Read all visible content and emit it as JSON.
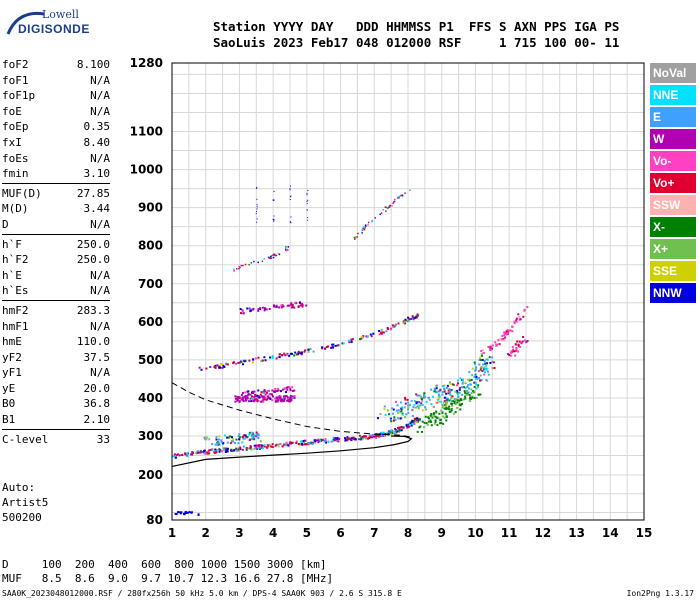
{
  "logo": {
    "line1": "Lowell",
    "line2": "DIGISONDE"
  },
  "header": {
    "line1": "Station YYYY DAY   DDD HHMMSS P1  FFS S AXN PPS IGA PS",
    "line2": "SaoLuis 2023 Feb17 048 012000 RSF     1 715 100 00- 11"
  },
  "params_group1": [
    {
      "key": "foF2",
      "value": "8.100"
    },
    {
      "key": "foF1",
      "value": "N/A"
    },
    {
      "key": "foF1p",
      "value": "N/A"
    },
    {
      "key": "foE",
      "value": "N/A"
    },
    {
      "key": "foEp",
      "value": "0.35"
    },
    {
      "key": "fxI",
      "value": "8.40"
    },
    {
      "key": "foEs",
      "value": "N/A"
    },
    {
      "key": "fmin",
      "value": "3.10"
    }
  ],
  "params_group2": [
    {
      "key": "MUF(D)",
      "value": "27.85"
    },
    {
      "key": "M(D)",
      "value": "3.44"
    },
    {
      "key": "D",
      "value": "N/A"
    }
  ],
  "params_group3": [
    {
      "key": "h`F",
      "value": "250.0"
    },
    {
      "key": "h`F2",
      "value": "250.0"
    },
    {
      "key": "h`E",
      "value": "N/A"
    },
    {
      "key": "h`Es",
      "value": "N/A"
    }
  ],
  "params_group4": [
    {
      "key": "hmF2",
      "value": "283.3"
    },
    {
      "key": "hmF1",
      "value": "N/A"
    },
    {
      "key": "hmE",
      "value": "110.0"
    },
    {
      "key": "yF2",
      "value": "37.5"
    },
    {
      "key": "yF1",
      "value": "N/A"
    },
    {
      "key": "yE",
      "value": "20.0"
    },
    {
      "key": "B0",
      "value": "36.8"
    },
    {
      "key": "B1",
      "value": "2.10"
    }
  ],
  "params_group5": [
    {
      "key": "C-level",
      "value": "33"
    }
  ],
  "autoscaling": {
    "line1": "Auto:",
    "line2": "Artist5",
    "line3": "500200"
  },
  "bottom": {
    "line1": "D     100  200  400  600  800 1000 1500 3000 [km]",
    "line2": "MUF   8.5  8.6  9.0  9.7 10.7 12.3 16.6 27.8 [MHz]"
  },
  "footer": "SAA0K_2023048012000.RSF / 280fx256h 50 kHz 5.0 km / DPS-4 SAA0K 903 / 2.6 S 315.8 E",
  "version": "Ion2Png 1.3.17",
  "legend": [
    {
      "label": "NoVal",
      "color": "#a0a0a0"
    },
    {
      "label": "NNE",
      "color": "#00e0ff"
    },
    {
      "label": "E",
      "color": "#40a0ff"
    },
    {
      "label": "W",
      "color": "#b000b0"
    },
    {
      "label": "Vo-",
      "color": "#ff40c0"
    },
    {
      "label": "Vo+",
      "color": "#e00030"
    },
    {
      "label": "SSW",
      "color": "#ffb0b0"
    },
    {
      "label": "X-",
      "color": "#008000"
    },
    {
      "label": "X+",
      "color": "#70c050"
    },
    {
      "label": "SSE",
      "color": "#d0d000"
    },
    {
      "label": "NNW",
      "color": "#0000e0"
    }
  ],
  "chart_data": {
    "type": "scatter",
    "x_ticks": [
      "1",
      "2",
      "3",
      "4",
      "5",
      "6",
      "7",
      "8",
      "9",
      "10",
      "11",
      "12",
      "13",
      "14",
      "15"
    ],
    "y_ticks": [
      "80",
      "200",
      "300",
      "400",
      "500",
      "600",
      "700",
      "800",
      "900",
      "1000",
      "1100",
      "1280"
    ],
    "xlim": [
      1,
      15
    ],
    "ylim": [
      80,
      1280
    ],
    "grid": true,
    "profile_curve": [
      [
        1,
        222
      ],
      [
        2,
        240
      ],
      [
        3,
        246
      ],
      [
        4,
        251
      ],
      [
        5,
        256
      ],
      [
        6,
        262
      ],
      [
        7,
        270
      ],
      [
        7.6,
        278
      ],
      [
        8,
        286
      ],
      [
        8.1,
        293
      ],
      [
        7.9,
        299
      ],
      [
        7.5,
        300
      ]
    ],
    "dashed_curve": [
      [
        1,
        440
      ],
      [
        1.5,
        415
      ],
      [
        2,
        395
      ],
      [
        3,
        368
      ],
      [
        4,
        345
      ],
      [
        5,
        325
      ],
      [
        6,
        312
      ],
      [
        7,
        305
      ],
      [
        7.8,
        302
      ],
      [
        8.1,
        297
      ]
    ]
  }
}
